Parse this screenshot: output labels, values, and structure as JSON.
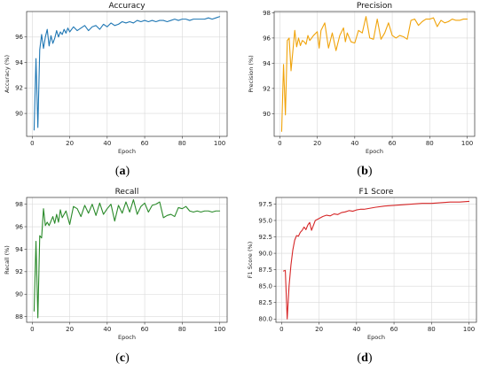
{
  "captions": [
    "(a)",
    "(b)",
    "(c)",
    "(d)"
  ],
  "chart_data": [
    {
      "type": "line",
      "title": "Accuracy",
      "xlabel": "Epoch",
      "ylabel": "Accuracy (%)",
      "xlim": [
        -3,
        104
      ],
      "ylim": [
        88.2,
        98.0
      ],
      "xticks": [
        0,
        20,
        40,
        60,
        80,
        100
      ],
      "yticks": [
        90,
        92,
        94,
        96
      ],
      "grid": true,
      "color": "#1f77b4",
      "series": [
        {
          "x": [
            1,
            2,
            3,
            4,
            5,
            6,
            7,
            8,
            9,
            10,
            11,
            12,
            13,
            14,
            15,
            16,
            17,
            18,
            19,
            20,
            22,
            24,
            26,
            28,
            30,
            32,
            34,
            36,
            38,
            40,
            42,
            44,
            46,
            48,
            50,
            52,
            54,
            56,
            58,
            60,
            62,
            64,
            66,
            68,
            70,
            72,
            74,
            76,
            78,
            80,
            82,
            84,
            86,
            88,
            90,
            92,
            94,
            96,
            98,
            100
          ],
          "values": [
            88.7,
            94.3,
            88.9,
            95.0,
            96.2,
            95.1,
            96.0,
            96.6,
            95.3,
            96.1,
            95.5,
            95.9,
            96.5,
            96.0,
            96.4,
            96.2,
            96.6,
            96.3,
            96.7,
            96.4,
            96.8,
            96.5,
            96.7,
            96.9,
            96.5,
            96.8,
            96.9,
            96.6,
            97.0,
            96.8,
            97.1,
            96.9,
            97.0,
            97.2,
            97.1,
            97.2,
            97.1,
            97.3,
            97.2,
            97.3,
            97.2,
            97.3,
            97.2,
            97.3,
            97.3,
            97.2,
            97.3,
            97.4,
            97.3,
            97.4,
            97.4,
            97.3,
            97.4,
            97.4,
            97.4,
            97.4,
            97.5,
            97.4,
            97.5,
            97.6
          ]
        }
      ]
    },
    {
      "type": "line",
      "title": "Precision",
      "xlabel": "Epoch",
      "ylabel": "Precision (%)",
      "xlim": [
        -3,
        104
      ],
      "ylim": [
        88.2,
        98.1
      ],
      "xticks": [
        0,
        20,
        40,
        60,
        80,
        100
      ],
      "yticks": [
        90,
        92,
        94,
        96,
        98
      ],
      "grid": true,
      "color": "#f0a30a",
      "series": [
        {
          "x": [
            1,
            2,
            3,
            4,
            5,
            6,
            7,
            8,
            9,
            10,
            11,
            12,
            13,
            14,
            15,
            16,
            18,
            20,
            21,
            22,
            24,
            26,
            28,
            30,
            32,
            34,
            35,
            36,
            38,
            40,
            42,
            44,
            46,
            48,
            50,
            52,
            54,
            56,
            58,
            60,
            62,
            64,
            66,
            68,
            70,
            72,
            74,
            76,
            78,
            80,
            82,
            84,
            86,
            88,
            90,
            92,
            94,
            96,
            98,
            100
          ],
          "values": [
            88.6,
            93.9,
            89.9,
            95.8,
            96.0,
            93.4,
            95.0,
            96.6,
            95.3,
            96.0,
            95.4,
            95.8,
            95.7,
            95.5,
            96.2,
            95.8,
            96.2,
            96.5,
            95.2,
            96.6,
            97.2,
            95.2,
            96.4,
            95.0,
            96.2,
            96.8,
            95.7,
            96.4,
            95.7,
            95.6,
            96.6,
            96.4,
            97.7,
            96.0,
            95.9,
            97.5,
            95.9,
            96.4,
            97.2,
            96.2,
            96.0,
            96.2,
            96.1,
            95.9,
            97.4,
            97.5,
            97.0,
            97.3,
            97.5,
            97.5,
            97.6,
            96.9,
            97.4,
            97.2,
            97.3,
            97.5,
            97.4,
            97.4,
            97.5,
            97.5
          ]
        }
      ]
    },
    {
      "type": "line",
      "title": "Recall",
      "xlabel": "Epoch",
      "ylabel": "Recall (%)",
      "xlim": [
        -3,
        104
      ],
      "ylim": [
        87.5,
        98.6
      ],
      "xticks": [
        0,
        20,
        40,
        60,
        80,
        100
      ],
      "yticks": [
        88,
        90,
        92,
        94,
        96,
        98
      ],
      "grid": true,
      "color": "#2a8a2a",
      "series": [
        {
          "x": [
            1,
            2,
            3,
            4,
            5,
            6,
            7,
            8,
            9,
            10,
            11,
            12,
            13,
            14,
            15,
            16,
            18,
            20,
            22,
            24,
            26,
            28,
            30,
            32,
            34,
            36,
            38,
            40,
            42,
            44,
            46,
            48,
            50,
            52,
            54,
            56,
            58,
            60,
            62,
            64,
            66,
            68,
            70,
            72,
            74,
            76,
            78,
            80,
            82,
            84,
            86,
            88,
            90,
            92,
            94,
            96,
            98,
            100
          ],
          "values": [
            88.5,
            94.7,
            87.9,
            95.2,
            95.0,
            97.6,
            96.1,
            96.4,
            96.1,
            96.5,
            96.9,
            96.3,
            97.1,
            96.4,
            97.5,
            96.8,
            97.4,
            96.2,
            97.8,
            97.6,
            96.9,
            97.9,
            97.2,
            98.0,
            97.0,
            98.1,
            97.1,
            97.6,
            98.0,
            96.5,
            97.9,
            97.2,
            98.2,
            97.3,
            98.4,
            97.1,
            97.8,
            98.1,
            97.3,
            97.9,
            98.0,
            98.2,
            96.8,
            97.0,
            97.1,
            96.9,
            97.7,
            97.6,
            97.8,
            97.4,
            97.3,
            97.4,
            97.3,
            97.4,
            97.4,
            97.3,
            97.4,
            97.4
          ]
        }
      ]
    },
    {
      "type": "line",
      "title": "F1 Score",
      "xlabel": "Epoch",
      "ylabel": "F1 Score (%)",
      "xlim": [
        -3,
        104
      ],
      "ylim": [
        79.5,
        98.5
      ],
      "xticks": [
        0,
        20,
        40,
        60,
        80,
        100
      ],
      "yticks": [
        80.0,
        82.5,
        85.0,
        87.5,
        90.0,
        92.5,
        95.0,
        97.5
      ],
      "grid": true,
      "color": "#d62728",
      "series": [
        {
          "x": [
            1,
            2,
            3,
            4,
            5,
            6,
            7,
            8,
            9,
            10,
            11,
            12,
            13,
            14,
            15,
            16,
            18,
            20,
            22,
            24,
            26,
            28,
            30,
            32,
            34,
            36,
            38,
            40,
            42,
            44,
            46,
            48,
            50,
            55,
            60,
            65,
            70,
            75,
            80,
            85,
            90,
            95,
            100
          ],
          "values": [
            87.3,
            87.4,
            80.0,
            85.0,
            88.2,
            90.5,
            92.0,
            92.7,
            92.6,
            93.2,
            93.5,
            94.0,
            93.6,
            94.3,
            94.7,
            93.5,
            95.0,
            95.3,
            95.6,
            95.8,
            95.7,
            96.0,
            95.9,
            96.2,
            96.3,
            96.5,
            96.4,
            96.6,
            96.7,
            96.7,
            96.8,
            96.9,
            97.0,
            97.2,
            97.3,
            97.4,
            97.5,
            97.6,
            97.6,
            97.7,
            97.8,
            97.8,
            97.9
          ]
        }
      ]
    }
  ]
}
